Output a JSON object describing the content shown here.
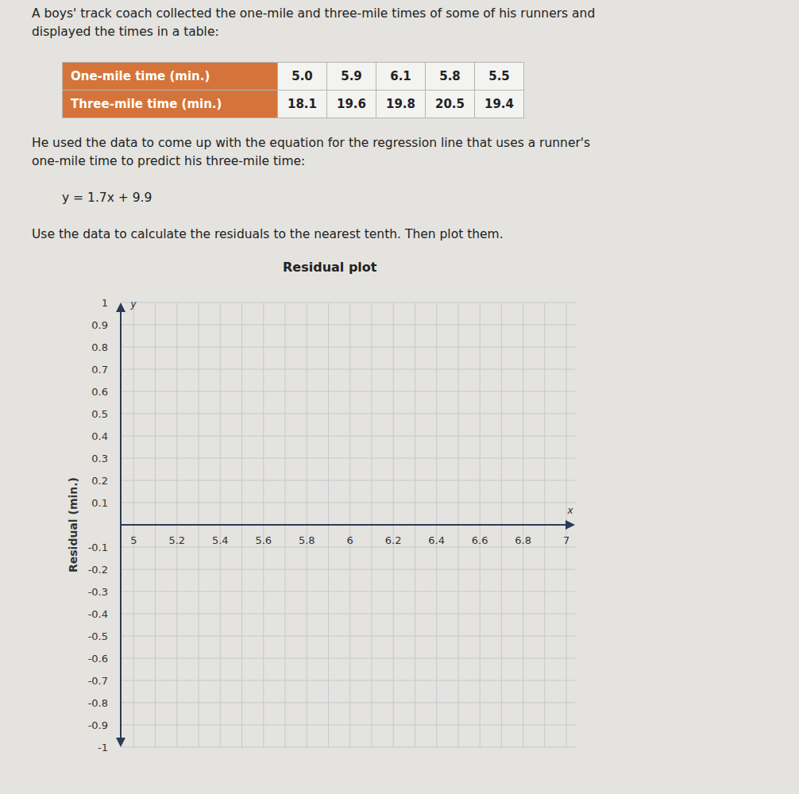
{
  "header": {
    "lines": [
      "A boys' track coach collected the one-mile and three-mile times of some of his runners and",
      "displayed the times in a table:"
    ]
  },
  "table": {
    "rows": [
      [
        "One-mile time (min.)",
        "5.0",
        "5.9",
        "6.1",
        "5.8",
        "5.5"
      ],
      [
        "Three-mile time (min.)",
        "18.1",
        "19.6",
        "19.8",
        "20.5",
        "19.4"
      ]
    ]
  },
  "body": {
    "lines": [
      "He used the data to come up with the equation for the regression line that uses a runner's",
      "one-mile time to predict his three-mile time:"
    ],
    "equation": "y = 1.7x + 9.9",
    "instruction": "Use the data to calculate the residuals to the nearest tenth. Then plot them."
  },
  "chart_data": {
    "type": "scatter",
    "title": "Residual plot",
    "x_label": "x",
    "y_label": "y",
    "y_axis_title": "Residual (min.)",
    "xlim": [
      4.94,
      7.04
    ],
    "xticks": [
      5,
      5.2,
      5.4,
      5.6,
      5.8,
      6,
      6.2,
      6.4,
      6.6,
      6.8,
      7
    ],
    "ylim": [
      -1,
      1
    ],
    "yticks": [
      1,
      0.9,
      0.8,
      0.7,
      0.6,
      0.5,
      0.4,
      0.3,
      0.2,
      0.1,
      -0.1,
      -0.2,
      -0.3,
      -0.4,
      -0.5,
      -0.6,
      -0.7,
      -0.8,
      -0.9,
      -1
    ],
    "grid": true
  }
}
